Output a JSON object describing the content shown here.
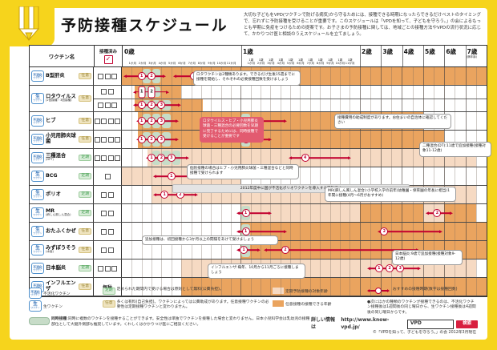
{
  "title": "予防接種スケジュール",
  "intro": "大切な子どもをVPD(ワクチンで防げる病気)から守るためには、接種できる時期になったらできるだけベストのタイミングで、忘れずに予防接種を受けることが重要です。このスケジュールは「VPDを知って、子どもを守ろう。」の会によるもっとも早期に免疫をつけるための提案です。お子さまの予防接種に関しては、地域ごとの接種方法やVPDの流行状況に応じて、かかりつけ医と相談のうえスケジュールを立てましょう。",
  "colors": {
    "frame_yellow": "#F6D41C",
    "optional_band": "#EAA45F",
    "regular_band": "#F6DAC3",
    "sim_green": "#C7DCC8",
    "arrow_red": "#C2002F",
    "callout_red": "#E25B70"
  },
  "header": {
    "vaccine_col": "ワクチン名",
    "check_col": "接種済み",
    "years": [
      {
        "label": "0歳",
        "months": [
          "1か月",
          "2か月",
          "3か月",
          "4か月",
          "5か月",
          "6か月",
          "7か月",
          "8か月",
          "9か月",
          "10か月",
          "11か月"
        ]
      },
      {
        "label": "1歳",
        "months": [
          "1歳1か月",
          "1歳2か月",
          "1歳3か月",
          "1歳4か月",
          "1歳5か月",
          "1歳6か月",
          "1歳7か月",
          "1歳8か月",
          "1歳9か月",
          "1歳10か月",
          "1歳11か月"
        ]
      },
      {
        "label": "2歳"
      },
      {
        "label": "3歳"
      },
      {
        "label": "4歳"
      },
      {
        "label": "5歳"
      },
      {
        "label": "6歳"
      },
      {
        "label": "7歳",
        "note": "(満年齢)"
      }
    ]
  },
  "schedule": {
    "badge_suffix": "ワクチン",
    "rows": [
      {
        "name": "B型肝炎",
        "sub": "",
        "vtype": "不活化",
        "category": "任意",
        "lanes": [
          {
            "checks": 3,
            "bands": [
              {
                "k": "opt",
                "f": 0,
                "t": 96
              }
            ],
            "sims": [
              2,
              3
            ],
            "arrows": [
              {
                "f": 0.3,
                "t": 4.3,
                "doses": [
                  {
                    "n": "1",
                    "at": 2
                  },
                  {
                    "n": "2",
                    "at": 3
                  }
                ]
              },
              {
                "f": 5.3,
                "t": 9.3,
                "doses": [
                  {
                    "n": "3",
                    "at": 7.3
                  }
                ]
              }
            ]
          }
        ]
      },
      {
        "name": "ロタウイルス",
        "sub": "(2回接種・3回接種)",
        "vtype": "生",
        "category": "任意",
        "lanes": [
          {
            "checks": 2,
            "bands": [
              {
                "k": "opt",
                "f": 1.3,
                "t": 6
              }
            ],
            "sims": [
              2,
              3
            ],
            "pills": [
              {
                "n": "1",
                "at": 2
              },
              {
                "n": "2",
                "at": 3
              }
            ],
            "arrows": [
              {
                "f": 1.3,
                "t": 4.6,
                "doses": []
              }
            ]
          },
          {
            "checks": 3,
            "bands": [
              {
                "k": "opt",
                "f": 1.3,
                "t": 8.2
              }
            ],
            "sims": [
              2,
              3,
              4
            ],
            "arrows": [
              {
                "f": 1.3,
                "t": 5.8,
                "doses": [
                  {
                    "n": "1",
                    "at": 2
                  },
                  {
                    "n": "2",
                    "at": 3
                  },
                  {
                    "n": "3",
                    "at": 4
                  }
                ]
              }
            ]
          }
        ]
      },
      {
        "name": "ヒブ",
        "sub": "",
        "vtype": "不活化",
        "category": "任意",
        "lanes": [
          {
            "checks": 4,
            "bands": [
              {
                "k": "opt",
                "f": 1.6,
                "t": 60
              }
            ],
            "sims": [
              2,
              3,
              4,
              12
            ],
            "arrows": [
              {
                "f": 1.6,
                "t": 5.6,
                "doses": [
                  {
                    "n": "1",
                    "at": 2
                  },
                  {
                    "n": "2",
                    "at": 3
                  },
                  {
                    "n": "3",
                    "at": 4
                  }
                ]
              },
              {
                "f": 11.7,
                "t": 16.5,
                "doses": [
                  {
                    "n": "4",
                    "at": 12.5
                  }
                ]
              }
            ]
          }
        ]
      },
      {
        "name": "小児用肺炎球菌",
        "sub": "",
        "vtype": "不活化",
        "category": "任意",
        "lanes": [
          {
            "checks": 4,
            "bands": [
              {
                "k": "opt",
                "f": 1.6,
                "t": 72
              }
            ],
            "sims": [
              2,
              3,
              4,
              12
            ],
            "arrows": [
              {
                "f": 1.6,
                "t": 5.6,
                "doses": [
                  {
                    "n": "1",
                    "at": 2
                  },
                  {
                    "n": "2",
                    "at": 3
                  },
                  {
                    "n": "3",
                    "at": 4
                  }
                ]
              },
              {
                "f": 11.7,
                "t": 15,
                "doses": [
                  {
                    "n": "4",
                    "at": 12.5
                  }
                ]
              }
            ]
          }
        ]
      },
      {
        "name": "三種混合",
        "sub": "(DPT)",
        "vtype": "不活化",
        "category": "定期",
        "lanes": [
          {
            "checks": 4,
            "bands": [
              {
                "k": "reg",
                "f": 2.6,
                "t": 90
              }
            ],
            "sims": [
              3,
              4,
              5
            ],
            "arrows": [
              {
                "f": 2.6,
                "t": 6.6,
                "doses": [
                  {
                    "n": "1",
                    "at": 3
                  },
                  {
                    "n": "2",
                    "at": 4
                  },
                  {
                    "n": "3",
                    "at": 5
                  }
                ]
              },
              {
                "f": 17,
                "t": 23,
                "doses": [
                  {
                    "n": "4",
                    "at": 18.5
                  }
                ]
              }
            ]
          }
        ]
      },
      {
        "name": "BCG",
        "sub": "",
        "vtype": "生",
        "category": "定期",
        "lanes": [
          {
            "checks": 1,
            "bands": [
              {
                "k": "reg",
                "f": 0,
                "t": 12
              }
            ],
            "sims": [],
            "arrows": [
              {
                "f": 3.3,
                "t": 6.8,
                "doses": [
                  {
                    "n": "1",
                    "at": 5
                  }
                ]
              }
            ]
          }
        ]
      },
      {
        "name": "ポリオ",
        "sub": "",
        "vtype": "生",
        "category": "定期",
        "lanes": [
          {
            "checks": 2,
            "bands": [
              {
                "k": "reg",
                "f": 3,
                "t": 90
              }
            ],
            "sims": [],
            "arrows": [
              {
                "f": 3.3,
                "t": 7.5,
                "doses": [
                  {
                    "n": "1",
                    "at": 4.3
                  },
                  {
                    "n": "2",
                    "at": 5.9
                  }
                ]
              }
            ]
          }
        ]
      },
      {
        "name": "MR",
        "sub": "(麻しん風しん混合)",
        "vtype": "生",
        "category": "定期",
        "lanes": [
          {
            "checks": 2,
            "bands": [
              {
                "k": "reg",
                "f": 12,
                "t": 24
              },
              {
                "k": "opt",
                "f": 24,
                "t": 60
              },
              {
                "k": "reg",
                "f": 60,
                "t": 72
              },
              {
                "k": "opt",
                "f": 72,
                "t": 90
              }
            ],
            "sims": [
              12
            ],
            "arrows": [
              {
                "f": 11.7,
                "t": 15,
                "doses": [
                  {
                    "n": "1",
                    "at": 12.5
                  }
                ]
              },
              {
                "f": 62.5,
                "t": 76,
                "doses": [
                  {
                    "n": "2",
                    "at": 68
                  }
                ]
              }
            ]
          }
        ]
      },
      {
        "name": "おたふくかぜ",
        "sub": "",
        "vtype": "生",
        "category": "任意",
        "lanes": [
          {
            "checks": 2,
            "bands": [
              {
                "k": "opt",
                "f": 12,
                "t": 96
              }
            ],
            "sims": [
              12
            ],
            "arrows": [
              {
                "f": 11.7,
                "t": 16.5,
                "doses": [
                  {
                    "n": "1",
                    "at": 12.5
                  }
                ]
              },
              {
                "f": 35,
                "t": 70,
                "doses": [
                  {
                    "n": "2",
                    "at": 38
                  }
                ]
              }
            ]
          }
        ]
      },
      {
        "name": "みずぼうそう",
        "sub": "(水痘)",
        "vtype": "生",
        "category": "任意",
        "lanes": [
          {
            "checks": 2,
            "bands": [
              {
                "k": "opt",
                "f": 12,
                "t": 96
              }
            ],
            "sims": [
              12
            ],
            "arrows": [
              {
                "f": 11.7,
                "t": 13.8,
                "doses": [
                  {
                    "n": "1",
                    "at": 12.3
                  }
                ]
              },
              {
                "f": 14.5,
                "t": 57,
                "doses": [
                  {
                    "n": "2",
                    "at": 16.5
                  }
                ]
              }
            ]
          }
        ]
      },
      {
        "name": "日本脳炎",
        "sub": "",
        "vtype": "不活化",
        "category": "定期",
        "lanes": [
          {
            "checks": 3,
            "bands": [
              {
                "k": "reg",
                "f": 6,
                "t": 90
              }
            ],
            "sims": [],
            "arrows": [
              {
                "f": 29,
                "t": 58,
                "doses": [
                  {
                    "n": "1",
                    "at": 35
                  },
                  {
                    "n": "2",
                    "at": 41
                  },
                  {
                    "n": "3",
                    "at": 47
                  }
                ]
              }
            ]
          }
        ]
      },
      {
        "name": "インフルエンザ",
        "sub": "",
        "vtype": "不活化",
        "category": "任意",
        "lanes": [
          {
            "checks": 0,
            "checkText": "毎秋",
            "bands": [
              {
                "k": "opt",
                "f": 6,
                "t": 96
              }
            ],
            "sims": [],
            "arrows": []
          }
        ]
      }
    ]
  },
  "callouts": {
    "rota": "ロタワクチンは2種類あります。できるだけ生後15週までに接種を開始し、それぞれの必要接種回数を受けましょう",
    "sim": "ロタウイルス・ヒブ・小児用肺炎球菌・三種混合の必要回数を早期に完了するためには、同時接種で受けることが重要です",
    "subsidy": "接種費用の助成制度があります。お住まいの自治体に確認してください",
    "dt": "二種混合(DT):11歳で追加接種(接種対象11-12歳)",
    "bcg": "個別接種の場合はヒブ・小児用肺炎球菌・三種混合などと同時接種で受けられます",
    "polio": "2012年度中に国が不活化ポリオワクチンを導入する方針です",
    "mr": "MR(麻しん風しん混合):小学校入学の前年(幼稚園・保育園の年長に相当)1年間に接種(4月〜6月がおすすめ)",
    "chickenpox": "追加接種は、初回接種から3か月以上の間隔をあけて受けましょう",
    "flu": "インフルエンザ:毎年、10月から11月ごろに接種しましょう",
    "je": "日本脳炎:9歳で追加接種(接種対象9-12歳)"
  },
  "legend": {
    "inactivated_label": "不活化ワクチン",
    "live_label": "生ワクチン",
    "regular_badge": "定期",
    "regular_text": "定められた期間内で受ける場合は原則として無料(公費負担)。",
    "optional_badge": "任意",
    "optional_text": "多くは有料(自己負担)。ワクチンによっては公費助成があります。任意接種ワクチンの必要性は定期接種ワクチンと変わりません。",
    "regular_band_label": "定期予防接種の対象年齢",
    "optional_band_label": "任意接種の接種できる年齢",
    "arrow_label": "おすすめの接種時期(数字は接種回数)",
    "note": "●次にほかの種類のワクチンが接種できるのは、不活化ワクチン接種後は1週間後の同じ曜日から、生ワクチン接種後は4週間後の同じ曜日からです。",
    "sim_label": "同時接種",
    "sim_text": ":同時に複数のワクチンを接種することができます。安全性は単独でワクチンを接種した場合と変わりません。日本小児科学会は乳幼児の接種部位として大腿外側部も推奨しています。くわしくはかかりつけ医にご相談ください。"
  },
  "footer": {
    "info_label": "詳しい情報は",
    "url": "http://www.know-vpd.jp/",
    "search_value": "VPD",
    "search_button": "検索",
    "copyright": "©「VPDを知って、子どもを守ろう。」の会 2012年3月現在"
  }
}
